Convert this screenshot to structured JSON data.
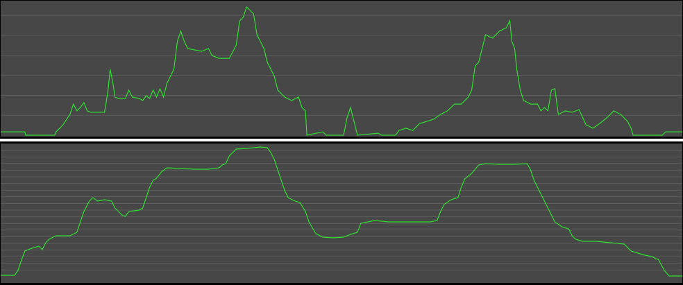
{
  "chart_data": [
    {
      "type": "line",
      "color": "#2ee02e",
      "grid": true,
      "xlim": [
        0,
        984
      ],
      "ylim": [
        0,
        67
      ],
      "yticks": [
        10,
        20,
        30,
        40,
        50,
        60
      ],
      "x": [
        0,
        35,
        36,
        78,
        80,
        90,
        100,
        105,
        110,
        115,
        120,
        125,
        130,
        140,
        150,
        155,
        158,
        162,
        165,
        170,
        180,
        185,
        190,
        200,
        205,
        210,
        215,
        220,
        225,
        230,
        235,
        240,
        245,
        250,
        255,
        260,
        265,
        270,
        280,
        290,
        300,
        305,
        315,
        330,
        340,
        345,
        350,
        355,
        360,
        365,
        370,
        375,
        380,
        385,
        390,
        395,
        400,
        410,
        420,
        430,
        435,
        440,
        442,
        465,
        470,
        495,
        500,
        505,
        510,
        515,
        545,
        550,
        570,
        575,
        585,
        595,
        605,
        615,
        625,
        635,
        645,
        655,
        665,
        675,
        680,
        685,
        690,
        695,
        700,
        710,
        720,
        730,
        735,
        738,
        742,
        745,
        750,
        755,
        765,
        775,
        780,
        785,
        790,
        795,
        800,
        805,
        815,
        825,
        835,
        845,
        855,
        865,
        875,
        885,
        895,
        905,
        910,
        913,
        955,
        960,
        984
      ],
      "values": [
        1.7,
        1.7,
        0,
        0,
        1.7,
        5.2,
        10.4,
        15.6,
        12.2,
        13.9,
        16.3,
        12.2,
        11.5,
        11.5,
        11.5,
        22.6,
        33,
        26,
        19.1,
        18.4,
        18.4,
        22.6,
        19.1,
        18.4,
        17.4,
        19.8,
        18.4,
        22.6,
        19.1,
        23.3,
        19.1,
        26,
        29.5,
        33,
        46.9,
        52.1,
        46.9,
        43.4,
        42.7,
        42,
        43.4,
        39.9,
        38.5,
        38.5,
        45.1,
        57.3,
        59,
        64.2,
        62.5,
        60.8,
        50.3,
        46.9,
        43.4,
        36.5,
        33,
        29.5,
        22.6,
        19.1,
        17.4,
        19.1,
        13.9,
        12.2,
        0,
        1.7,
        0,
        0,
        8.7,
        13.9,
        6.9,
        0,
        1,
        0,
        0,
        2.4,
        3.5,
        2.4,
        5.9,
        6.9,
        8,
        10.4,
        12.2,
        15.6,
        15.6,
        19.1,
        22.6,
        34.7,
        36.5,
        43.4,
        50.3,
        48.6,
        52.1,
        53.8,
        57.3,
        46.9,
        43.4,
        33,
        22.6,
        17.4,
        15.6,
        15.6,
        12.2,
        13.9,
        12.2,
        22.6,
        23.3,
        10.4,
        12.2,
        11.5,
        12.8,
        5.2,
        3.5,
        5.9,
        8.7,
        12.2,
        10.4,
        6.9,
        3.5,
        0,
        0,
        1.7,
        1.7
      ]
    },
    {
      "type": "line",
      "color": "#2ee02e",
      "grid": true,
      "xlim": [
        0,
        984
      ],
      "ylim": [
        0,
        200
      ],
      "yticks": [
        10,
        20,
        30,
        40,
        50,
        60,
        70,
        80,
        90,
        100,
        110,
        120,
        130,
        140,
        150,
        160,
        170,
        180,
        190
      ],
      "x": [
        0,
        20,
        25,
        30,
        35,
        45,
        55,
        60,
        65,
        70,
        80,
        90,
        100,
        110,
        115,
        120,
        128,
        133,
        140,
        150,
        160,
        165,
        170,
        175,
        180,
        185,
        200,
        205,
        210,
        215,
        220,
        225,
        232,
        240,
        260,
        280,
        300,
        315,
        320,
        325,
        330,
        340,
        355,
        375,
        385,
        390,
        395,
        400,
        405,
        410,
        415,
        425,
        432,
        440,
        445,
        455,
        465,
        480,
        495,
        505,
        515,
        520,
        530,
        540,
        560,
        580,
        600,
        620,
        630,
        635,
        640,
        650,
        660,
        665,
        670,
        680,
        690,
        700,
        720,
        740,
        760,
        765,
        770,
        780,
        790,
        800,
        810,
        820,
        825,
        830,
        840,
        860,
        880,
        900,
        910,
        920,
        930,
        940,
        950,
        958,
        965,
        984
      ],
      "values": [
        2.1,
        2.1,
        9.4,
        25,
        38.5,
        42.7,
        45.8,
        40.6,
        51,
        56.3,
        61.5,
        61.5,
        61.5,
        66.7,
        82.3,
        97.9,
        113.5,
        118.8,
        113.5,
        115.6,
        113.5,
        103.1,
        97.9,
        92.7,
        90.6,
        97.9,
        100,
        103.1,
        118.8,
        134.4,
        144.8,
        147.9,
        157.3,
        163.5,
        162.5,
        161.5,
        161.5,
        163.5,
        167.7,
        169.8,
        181.3,
        191.7,
        192.7,
        194.8,
        193.8,
        186.5,
        176,
        160.4,
        144.8,
        129.2,
        118.8,
        113.5,
        111.5,
        97.9,
        82.3,
        64.6,
        59.4,
        58.3,
        59.4,
        63.5,
        66.7,
        80.2,
        82.3,
        84.4,
        82.3,
        82.3,
        82.3,
        82.3,
        84.4,
        97.9,
        108.3,
        115.6,
        118.8,
        134.4,
        146.9,
        155.2,
        167.7,
        169.8,
        168.8,
        168.8,
        169.8,
        160.4,
        144.8,
        124,
        103.1,
        82.3,
        75,
        71.9,
        61.5,
        56.3,
        53.1,
        53.1,
        51,
        49,
        38.5,
        35.4,
        32.3,
        30.2,
        25,
        9.4,
        1,
        1
      ]
    }
  ]
}
